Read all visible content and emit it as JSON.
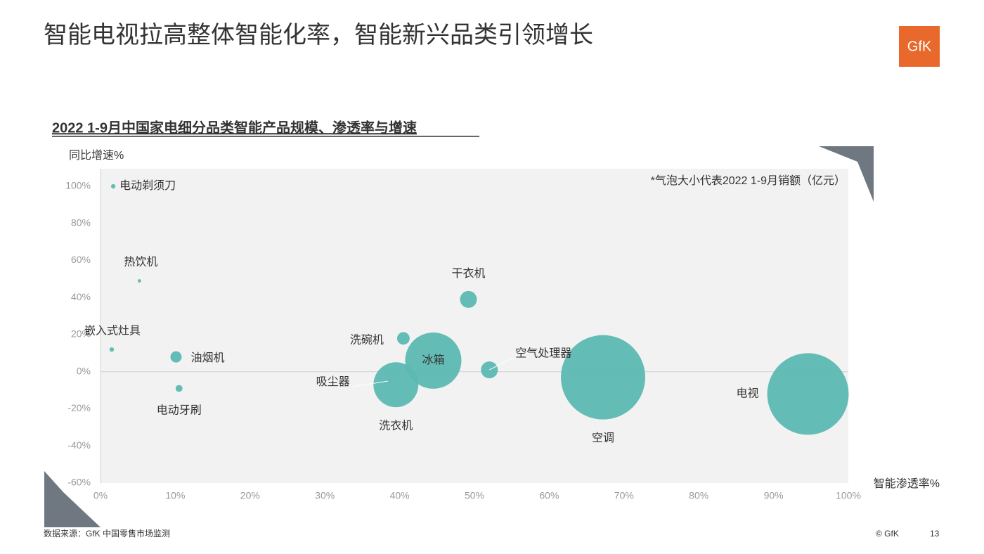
{
  "header": {
    "title": "智能电视拉高整体智能化率，智能新兴品类引领增长",
    "logo": "GfK"
  },
  "chart_data": {
    "type": "bubble",
    "title": "2022 1-9月中国家电细分品类智能产品规模、渗透率与增速",
    "y_label": "同比增速%",
    "x_label": "智能渗透率%",
    "note": "*气泡大小代表2022 1-9月销额（亿元）",
    "color": "#5cb8b2",
    "points": [
      {
        "name": "电动剃须刀",
        "x": 1.7,
        "y": 100,
        "size": 5
      },
      {
        "name": "热饮机",
        "x": 5.2,
        "y": 49,
        "size": 3
      },
      {
        "name": "嵌入式灶具",
        "x": 1.5,
        "y": 12,
        "size": 5
      },
      {
        "name": "油烟机",
        "x": 10.1,
        "y": 8,
        "size": 32
      },
      {
        "name": "电动牙刷",
        "x": 10.5,
        "y": -9,
        "size": 12
      },
      {
        "name": "洗碗机",
        "x": 40.5,
        "y": 18,
        "size": 40
      },
      {
        "name": "冰箱",
        "x": 44.5,
        "y": 6,
        "size": 800
      },
      {
        "name": "干衣机",
        "x": 49.2,
        "y": 39,
        "size": 72
      },
      {
        "name": "空气处理器",
        "x": 52,
        "y": 1,
        "size": 72
      },
      {
        "name": "吸尘器",
        "x": 38.5,
        "y": -5,
        "size": 5
      },
      {
        "name": "洗衣机",
        "x": 39.5,
        "y": -7,
        "size": 510
      },
      {
        "name": "空调",
        "x": 67.2,
        "y": -3,
        "size": 1800
      },
      {
        "name": "电视",
        "x": 94.6,
        "y": -12,
        "size": 1680
      }
    ],
    "xlim": [
      0,
      100
    ],
    "xticks": [
      {
        "value": 0,
        "label": "0%"
      },
      {
        "value": 10,
        "label": "10%"
      },
      {
        "value": 20,
        "label": "20%"
      },
      {
        "value": 30,
        "label": "30%"
      },
      {
        "value": 40,
        "label": "40%"
      },
      {
        "value": 50,
        "label": "50%"
      },
      {
        "value": 60,
        "label": "60%"
      },
      {
        "value": 70,
        "label": "70%"
      },
      {
        "value": 80,
        "label": "80%"
      },
      {
        "value": 90,
        "label": "90%"
      },
      {
        "value": 100,
        "label": "100%"
      }
    ],
    "ylim": [
      -60,
      100
    ],
    "yticks": [
      {
        "value": -60,
        "label": "-60%"
      },
      {
        "value": -40,
        "label": "-40%"
      },
      {
        "value": -20,
        "label": "-20%"
      },
      {
        "value": 0,
        "label": "0%"
      },
      {
        "value": 20,
        "label": "20%"
      },
      {
        "value": 40,
        "label": "40%"
      },
      {
        "value": 60,
        "label": "60%"
      },
      {
        "value": 80,
        "label": "80%"
      },
      {
        "value": 100,
        "label": "100%"
      }
    ]
  },
  "footer": {
    "source": "数据来源：GfK 中国零售市场监测",
    "copyright": "© GfK",
    "page": "13"
  }
}
